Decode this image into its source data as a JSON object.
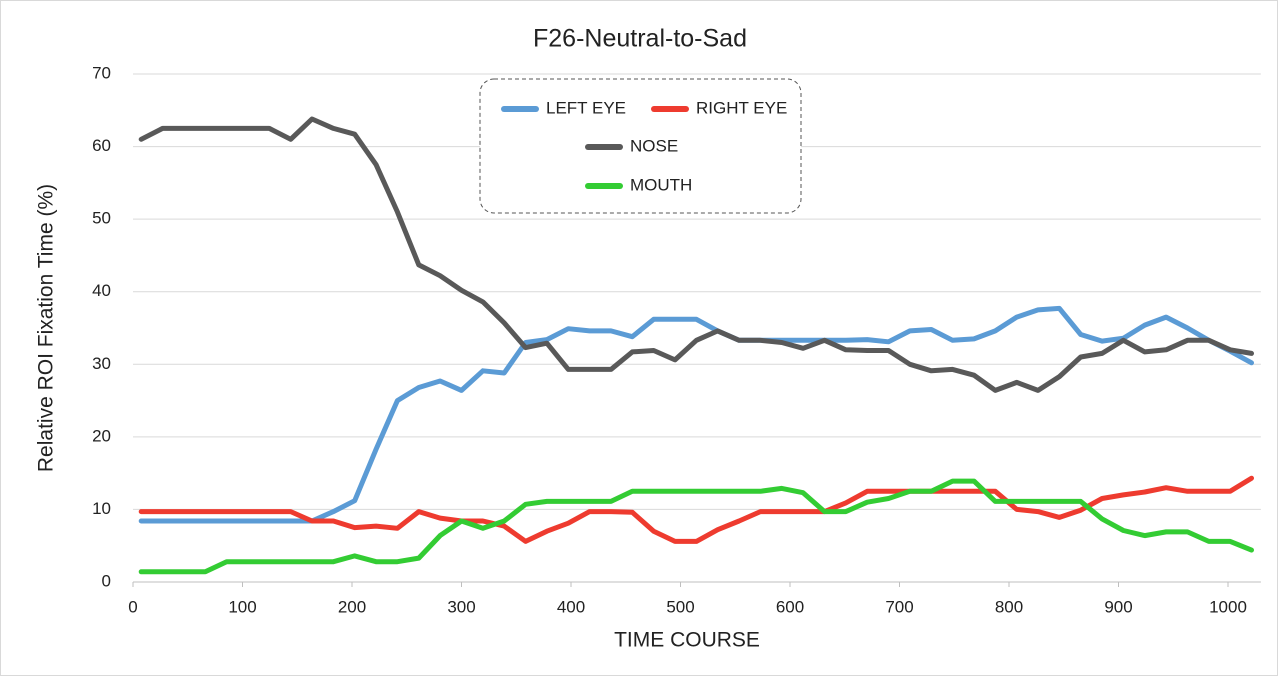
{
  "chart_data": {
    "type": "line",
    "title": "F26-Neutral-to-Sad",
    "x_label": "TIME  COURSE",
    "y_label": "Relative  ROI  Fixation  Time  (%)",
    "x": [
      7.5,
      27,
      46.5,
      66,
      85.5,
      105,
      124.5,
      144,
      163.5,
      183,
      202.5,
      222,
      241.5,
      261,
      280.5,
      300,
      319.5,
      339,
      358.5,
      378,
      397.5,
      417,
      436.5,
      456,
      475.5,
      495,
      514.5,
      534,
      553.5,
      573,
      592.5,
      612,
      631.5,
      651,
      670.5,
      690,
      709.5,
      729,
      748.5,
      768,
      787.5,
      807,
      826.5,
      846,
      865.5,
      885,
      904.5,
      924,
      943.5,
      963,
      982.5,
      1002,
      1021.5
    ],
    "series": [
      {
        "name": "LEFT EYE",
        "color": "#5b9bd5",
        "values": [
          8.4,
          8.4,
          8.4,
          8.4,
          8.4,
          8.4,
          8.4,
          8.4,
          8.4,
          9.7,
          11.2,
          18.3,
          25,
          26.8,
          27.7,
          26.4,
          29.1,
          28.8,
          33,
          33.4,
          34.9,
          34.6,
          34.6,
          33.8,
          36.2,
          36.2,
          36.2,
          34.6,
          33.3,
          33.3,
          33.3,
          33.3,
          33.3,
          33.3,
          33.4,
          33.1,
          34.6,
          34.8,
          33.3,
          33.5,
          34.6,
          36.5,
          37.5,
          37.7,
          34.1,
          33.2,
          33.6,
          35.4,
          36.5,
          35,
          33.3,
          31.8,
          30.2
        ]
      },
      {
        "name": "RIGHT EYE",
        "color": "#ee3b2f",
        "values": [
          9.7,
          9.7,
          9.7,
          9.7,
          9.7,
          9.7,
          9.7,
          9.7,
          8.4,
          8.4,
          7.5,
          7.7,
          7.4,
          9.7,
          8.8,
          8.4,
          8.4,
          7.7,
          5.6,
          7,
          8.1,
          9.7,
          9.7,
          9.6,
          7,
          5.6,
          5.6,
          7.2,
          8.4,
          9.7,
          9.7,
          9.7,
          9.7,
          10.9,
          12.5,
          12.5,
          12.5,
          12.5,
          12.5,
          12.5,
          12.5,
          10,
          9.7,
          8.9,
          9.9,
          11.5,
          12,
          12.4,
          13,
          12.5,
          12.5,
          12.5,
          14.3
        ]
      },
      {
        "name": "NOSE",
        "color": "#595959",
        "values": [
          61,
          62.5,
          62.5,
          62.5,
          62.5,
          62.5,
          62.5,
          61,
          63.8,
          62.5,
          61.7,
          57.5,
          51,
          43.7,
          42.2,
          40.2,
          38.6,
          35.7,
          32.3,
          32.9,
          29.3,
          29.3,
          29.3,
          31.7,
          31.9,
          30.6,
          33.3,
          34.6,
          33.3,
          33.3,
          33,
          32.2,
          33.3,
          32,
          31.9,
          31.9,
          30,
          29.1,
          29.3,
          28.5,
          26.4,
          27.5,
          26.4,
          28.3,
          31,
          31.5,
          33.3,
          31.7,
          32,
          33.3,
          33.3,
          32,
          31.5
        ]
      },
      {
        "name": "MOUTH",
        "color": "#33cc33",
        "values": [
          1.4,
          1.4,
          1.4,
          1.4,
          2.8,
          2.8,
          2.8,
          2.8,
          2.8,
          2.8,
          3.6,
          2.8,
          2.8,
          3.3,
          6.4,
          8.4,
          7.4,
          8.4,
          10.7,
          11.1,
          11.1,
          11.1,
          11.1,
          12.5,
          12.5,
          12.5,
          12.5,
          12.5,
          12.5,
          12.5,
          12.9,
          12.3,
          9.7,
          9.7,
          11,
          11.5,
          12.5,
          12.5,
          13.9,
          13.9,
          11.1,
          11.1,
          11.1,
          11.1,
          11.1,
          8.7,
          7.1,
          6.4,
          6.9,
          6.9,
          5.6,
          5.6,
          4.4
        ]
      }
    ],
    "xlim": [
      0,
      1030
    ],
    "ylim": [
      0,
      70
    ],
    "xticks": [
      0,
      100,
      200,
      300,
      400,
      500,
      600,
      700,
      800,
      900,
      1000
    ],
    "yticks": [
      0,
      10,
      20,
      30,
      40,
      50,
      60,
      70
    ],
    "grid": true,
    "legend": "top"
  }
}
